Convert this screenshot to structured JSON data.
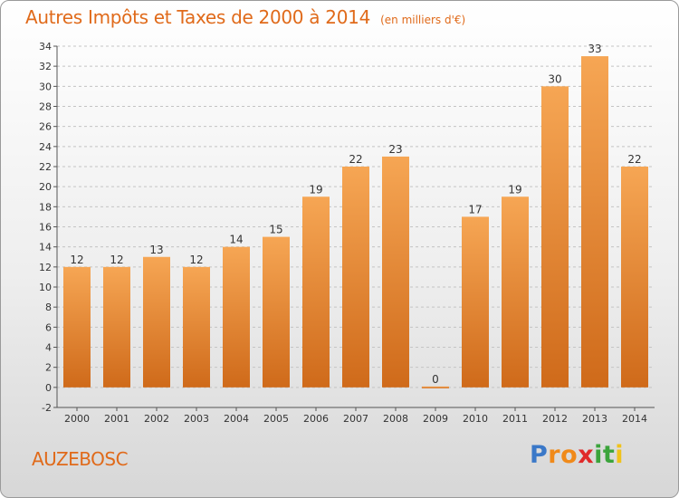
{
  "title": "Autres Impôts et Taxes de 2000 à 2014",
  "subtitle": "(en milliers d'€)",
  "commune": "AUZEBOSC",
  "logo": {
    "letters": [
      "P",
      "r",
      "o",
      "x",
      "i",
      "t",
      "i"
    ],
    "colors": [
      "#3a78c8",
      "#f08a1a",
      "#f08a1a",
      "#e02a2a",
      "#3ba43b",
      "#3ba43b",
      "#f0c21a"
    ]
  },
  "colors": {
    "accent": "#e06a1a",
    "bar_light": "#f6a654",
    "bar_dark": "#cf6a1a"
  },
  "chart_data": {
    "type": "bar",
    "categories": [
      "2000",
      "2001",
      "2002",
      "2003",
      "2004",
      "2005",
      "2006",
      "2007",
      "2008",
      "2009",
      "2010",
      "2011",
      "2012",
      "2013",
      "2014"
    ],
    "values": [
      12,
      12,
      13,
      12,
      14,
      15,
      19,
      22,
      23,
      0,
      17,
      19,
      30,
      33,
      22
    ],
    "data_labels": [
      "12",
      "12",
      "13",
      "12",
      "14",
      "15",
      "19",
      "22",
      "23",
      "0",
      "17",
      "19",
      "30",
      "33",
      "22"
    ],
    "ylim": [
      -2,
      34
    ],
    "yticks": [
      -2,
      0,
      2,
      4,
      6,
      8,
      10,
      12,
      14,
      16,
      18,
      20,
      22,
      24,
      26,
      28,
      30,
      32,
      34
    ],
    "grid": "horizontal dashed",
    "xlabel": "",
    "ylabel": ""
  }
}
